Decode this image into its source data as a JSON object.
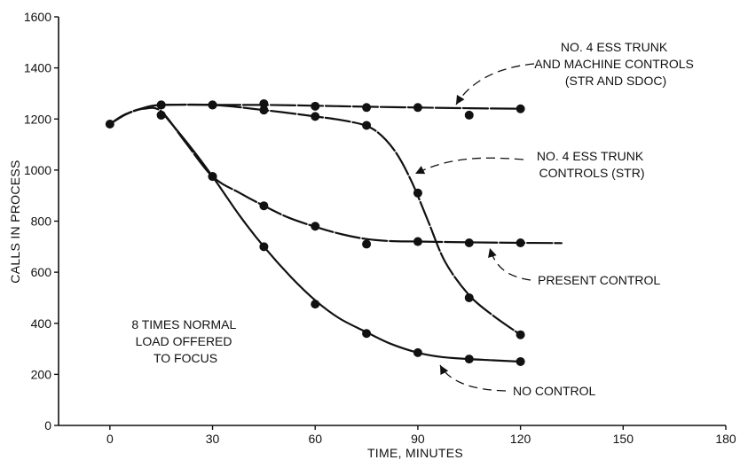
{
  "chart_data": {
    "type": "line",
    "title": "",
    "xlabel": "TIME, MINUTES",
    "ylabel": "CALLS IN PROCESS",
    "xlim": [
      -15,
      180
    ],
    "ylim": [
      0,
      1600
    ],
    "xticks": [
      0,
      30,
      60,
      90,
      120,
      150,
      180
    ],
    "yticks": [
      0,
      200,
      400,
      600,
      800,
      1000,
      1200,
      1400,
      1600
    ],
    "grid": false,
    "legend": "none",
    "start_point": {
      "x": 0,
      "y": 1180
    },
    "series": [
      {
        "key": "no4-ess-trunk-machine",
        "dashed": true,
        "points": [
          [
            15,
            1255
          ],
          [
            30,
            1255
          ],
          [
            45,
            1260
          ],
          [
            60,
            1250
          ],
          [
            75,
            1245
          ],
          [
            90,
            1245
          ],
          [
            105,
            1215
          ],
          [
            120,
            1240
          ]
        ],
        "curve": [
          [
            0,
            1180
          ],
          [
            4,
            1215
          ],
          [
            9,
            1240
          ],
          [
            15,
            1255
          ],
          [
            30,
            1255
          ],
          [
            45,
            1255
          ],
          [
            60,
            1252
          ],
          [
            75,
            1248
          ],
          [
            90,
            1245
          ],
          [
            105,
            1242
          ],
          [
            120,
            1240
          ]
        ]
      },
      {
        "key": "no4-ess-trunk-str",
        "dashed": true,
        "points": [
          [
            15,
            1255
          ],
          [
            30,
            1255
          ],
          [
            45,
            1235
          ],
          [
            60,
            1210
          ],
          [
            75,
            1175
          ],
          [
            90,
            910
          ],
          [
            105,
            500
          ],
          [
            120,
            355
          ]
        ],
        "curve": [
          [
            15,
            1255
          ],
          [
            30,
            1255
          ],
          [
            45,
            1235
          ],
          [
            60,
            1210
          ],
          [
            70,
            1190
          ],
          [
            77,
            1160
          ],
          [
            83,
            1080
          ],
          [
            88,
            960
          ],
          [
            93,
            800
          ],
          [
            98,
            640
          ],
          [
            105,
            510
          ],
          [
            112,
            430
          ],
          [
            120,
            355
          ]
        ]
      },
      {
        "key": "present-control",
        "dashed": true,
        "points": [
          [
            15,
            1215
          ],
          [
            30,
            975
          ],
          [
            45,
            860
          ],
          [
            60,
            780
          ],
          [
            75,
            710
          ],
          [
            90,
            720
          ],
          [
            105,
            715
          ],
          [
            120,
            715
          ]
        ],
        "curve": [
          [
            0,
            1180
          ],
          [
            5,
            1220
          ],
          [
            10,
            1240
          ],
          [
            15,
            1230
          ],
          [
            22,
            1110
          ],
          [
            30,
            975
          ],
          [
            38,
            910
          ],
          [
            45,
            860
          ],
          [
            52,
            815
          ],
          [
            60,
            778
          ],
          [
            68,
            748
          ],
          [
            75,
            730
          ],
          [
            82,
            722
          ],
          [
            90,
            720
          ],
          [
            105,
            717
          ],
          [
            120,
            715
          ],
          [
            132,
            714
          ]
        ]
      },
      {
        "key": "no-control",
        "dashed": false,
        "points": [
          [
            15,
            1215
          ],
          [
            30,
            975
          ],
          [
            45,
            700
          ],
          [
            60,
            475
          ],
          [
            75,
            360
          ],
          [
            90,
            285
          ],
          [
            105,
            260
          ],
          [
            120,
            250
          ]
        ],
        "curve": [
          [
            15,
            1230
          ],
          [
            23,
            1100
          ],
          [
            30,
            975
          ],
          [
            38,
            820
          ],
          [
            45,
            700
          ],
          [
            53,
            580
          ],
          [
            60,
            490
          ],
          [
            67,
            420
          ],
          [
            75,
            365
          ],
          [
            82,
            320
          ],
          [
            90,
            285
          ],
          [
            97,
            268
          ],
          [
            105,
            260
          ],
          [
            112,
            255
          ],
          [
            120,
            250
          ]
        ]
      }
    ],
    "annotations": [
      {
        "key": "no4-machine",
        "lines": [
          "NO. 4 ESS TRUNK",
          "AND MACHINE CONTROLS",
          "(STR AND SDOC)"
        ]
      },
      {
        "key": "no4-str",
        "lines": [
          "NO. 4 ESS TRUNK",
          "CONTROLS (STR)"
        ]
      },
      {
        "key": "present",
        "lines": [
          "PRESENT CONTROL"
        ]
      },
      {
        "key": "nocontrol",
        "lines": [
          "NO CONTROL"
        ]
      },
      {
        "key": "load",
        "lines": [
          "8 TIMES NORMAL",
          "LOAD OFFERED",
          "TO FOCUS"
        ]
      }
    ]
  }
}
